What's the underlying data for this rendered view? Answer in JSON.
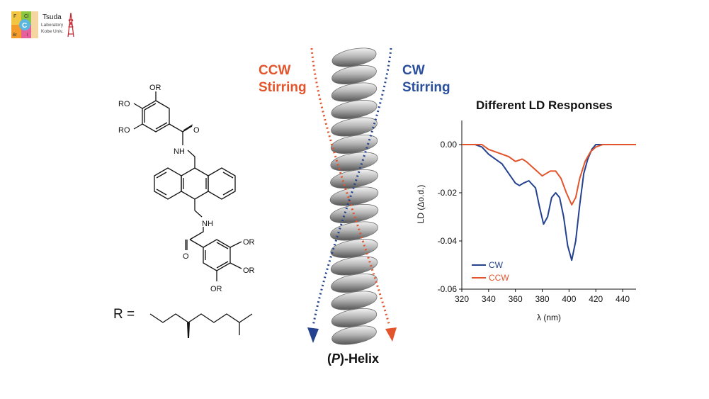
{
  "logo": {
    "tiles": [
      "F",
      "Cl",
      "C",
      "Br",
      "I"
    ],
    "name": "Tsuda",
    "line2": "Laboratory",
    "line3": "Kobe Univ."
  },
  "molecule": {
    "or_labels": [
      "OR",
      "RO",
      "RO",
      "OR",
      "OR",
      "OR"
    ],
    "amide_labels": [
      "O",
      "NH",
      "NH",
      "O"
    ],
    "r_prefix": "R ="
  },
  "helix": {
    "ccw_line1": "CCW",
    "ccw_line2": "Stirring",
    "cw_line1": "CW",
    "cw_line2": "Stirring",
    "caption_open": "(",
    "caption_italic": "P",
    "caption_rest": ")-Helix"
  },
  "colors": {
    "cw": "#24428f",
    "ccw": "#e2552c",
    "helix": "#9a9a9a"
  },
  "chart_data": {
    "type": "line",
    "title": "Different LD Responses",
    "xlabel": "λ (nm)",
    "ylabel": "LD (Δo.d.)",
    "xlim": [
      320,
      450
    ],
    "ylim": [
      -0.06,
      0.01
    ],
    "xticks": [
      320,
      340,
      360,
      380,
      400,
      420,
      440
    ],
    "yticks": [
      0.0,
      -0.02,
      -0.04,
      -0.06
    ],
    "ytick_labels": [
      "0.00",
      "-0.02",
      "-0.04",
      "-0.06"
    ],
    "legend_position": "bottom-left",
    "series": [
      {
        "name": "CW",
        "color": "#24428f",
        "x": [
          320,
          330,
          335,
          340,
          345,
          350,
          355,
          360,
          363,
          366,
          370,
          375,
          378,
          381,
          384,
          387,
          390,
          393,
          396,
          399,
          402,
          405,
          408,
          411,
          414,
          417,
          420,
          425,
          430,
          440,
          450
        ],
        "y": [
          0.0,
          0.0,
          -0.001,
          -0.004,
          -0.006,
          -0.008,
          -0.012,
          -0.016,
          -0.017,
          -0.016,
          -0.015,
          -0.018,
          -0.026,
          -0.033,
          -0.03,
          -0.022,
          -0.02,
          -0.022,
          -0.03,
          -0.042,
          -0.048,
          -0.04,
          -0.025,
          -0.012,
          -0.006,
          -0.002,
          0.0,
          0.0,
          0.0,
          0.0,
          0.0
        ]
      },
      {
        "name": "CCW",
        "color": "#e2552c",
        "x": [
          320,
          330,
          335,
          340,
          345,
          350,
          355,
          360,
          365,
          368,
          372,
          376,
          380,
          383,
          386,
          390,
          394,
          398,
          402,
          405,
          408,
          412,
          416,
          420,
          425,
          430,
          440,
          450
        ],
        "y": [
          0.0,
          0.0,
          0.0,
          -0.002,
          -0.003,
          -0.004,
          -0.005,
          -0.007,
          -0.006,
          -0.007,
          -0.009,
          -0.011,
          -0.013,
          -0.012,
          -0.011,
          -0.011,
          -0.014,
          -0.02,
          -0.025,
          -0.022,
          -0.014,
          -0.007,
          -0.003,
          -0.001,
          0.0,
          0.0,
          0.0,
          0.0
        ]
      }
    ]
  }
}
